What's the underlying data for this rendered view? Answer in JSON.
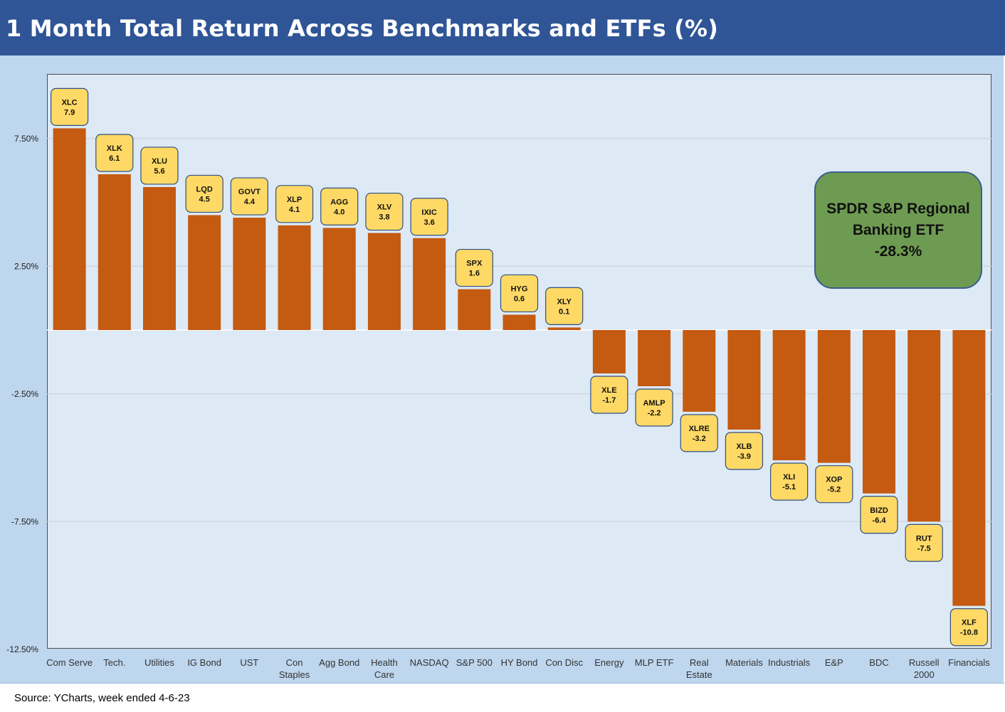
{
  "title": "1 Month Total Return Across Benchmarks and ETFs (%)",
  "source": "Source: YCharts, week ended 4-6-23",
  "callout": {
    "line1": "SPDR S&P Regional",
    "line2": "Banking ETF",
    "line3": "-28.3%"
  },
  "colors": {
    "bar": "#c55a11",
    "label_box": "#ffd966",
    "label_border": "#2f4f7f",
    "plot_bg": "#dde9f5",
    "outer_bg": "#bed6ee",
    "header": "#2f5596",
    "callout": "#6e9b52"
  },
  "chart_data": {
    "type": "bar",
    "title": "1 Month Total Return Across Benchmarks and ETFs (%)",
    "xlabel": "",
    "ylabel": "",
    "ylim": [
      -12.5,
      10
    ],
    "yticks": [
      -12.5,
      -7.5,
      -2.5,
      2.5,
      7.5
    ],
    "ytick_labels": [
      "-12.50%",
      "-7.50%",
      "-2.50%",
      "2.50%",
      "7.50%"
    ],
    "grid": true,
    "categories": [
      [
        "Com Serve"
      ],
      [
        "Tech."
      ],
      [
        "Utilities"
      ],
      [
        "IG Bond"
      ],
      [
        "UST"
      ],
      [
        "Con",
        "Staples"
      ],
      [
        "Agg Bond"
      ],
      [
        "Health",
        "Care"
      ],
      [
        "NASDAQ"
      ],
      [
        "S&P 500"
      ],
      [
        "HY Bond"
      ],
      [
        "Con Disc"
      ],
      [
        "Energy"
      ],
      [
        "MLP ETF"
      ],
      [
        "Real",
        "Estate"
      ],
      [
        "Materials"
      ],
      [
        "Industrials"
      ],
      [
        "E&P"
      ],
      [
        "BDC"
      ],
      [
        "Russell",
        "2000"
      ],
      [
        "Financials"
      ]
    ],
    "tickers": [
      "XLC",
      "XLK",
      "XLU",
      "LQD",
      "GOVT",
      "XLP",
      "AGG",
      "XLV",
      "IXIC",
      "SPX",
      "HYG",
      "XLY",
      "XLE",
      "AMLP",
      "XLRE",
      "XLB",
      "XLI",
      "XOP",
      "BIZD",
      "RUT",
      "XLF"
    ],
    "values": [
      7.9,
      6.1,
      5.6,
      4.5,
      4.4,
      4.1,
      4.0,
      3.8,
      3.6,
      1.6,
      0.6,
      0.1,
      -1.7,
      -2.2,
      -3.2,
      -3.9,
      -5.1,
      -5.2,
      -6.4,
      -7.5,
      -10.8
    ],
    "value_labels": [
      "7.9",
      "6.1",
      "5.6",
      "4.5",
      "4.4",
      "4.1",
      "4.0",
      "3.8",
      "3.6",
      "1.6",
      "0.6",
      "0.1",
      "-1.7",
      "-2.2",
      "-3.2",
      "-3.9",
      "-5.1",
      "-5.2",
      "-6.4",
      "-7.5",
      "-10.8"
    ]
  }
}
